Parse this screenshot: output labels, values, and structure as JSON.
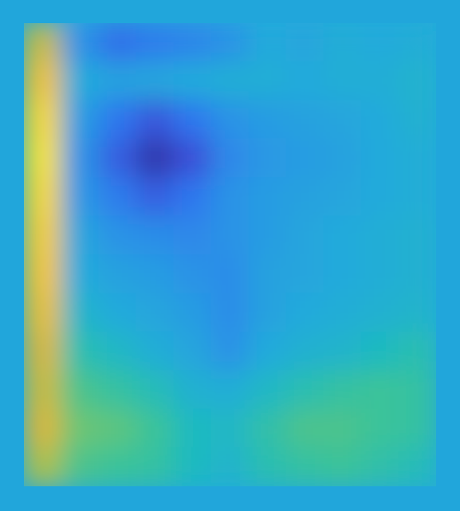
{
  "page": {
    "background_color": "#21a6db"
  },
  "chart_data": {
    "type": "heatmap",
    "title": "",
    "xlabel": "",
    "ylabel": "",
    "colormap": "parula",
    "colormap_stops": [
      "#2f2b8f",
      "#3a4fd8",
      "#2f77ee",
      "#2b93e6",
      "#24aadb",
      "#1fbac0",
      "#3bc39a",
      "#8dc55a",
      "#d7b83a",
      "#f4c62d",
      "#f7e930"
    ],
    "value_range": [
      0,
      1
    ],
    "grid": false,
    "legend": "none",
    "rows": 12,
    "cols": 11,
    "values": [
      [
        0.78,
        0.3,
        0.18,
        0.22,
        0.25,
        0.3,
        0.4,
        0.38,
        0.42,
        0.4,
        0.42
      ],
      [
        0.88,
        0.4,
        0.36,
        0.38,
        0.4,
        0.42,
        0.42,
        0.4,
        0.42,
        0.42,
        0.45
      ],
      [
        0.95,
        0.34,
        0.2,
        0.12,
        0.2,
        0.3,
        0.34,
        0.36,
        0.38,
        0.4,
        0.44
      ],
      [
        0.98,
        0.3,
        0.14,
        0.04,
        0.1,
        0.26,
        0.32,
        0.34,
        0.36,
        0.4,
        0.42
      ],
      [
        0.95,
        0.32,
        0.22,
        0.14,
        0.2,
        0.3,
        0.34,
        0.36,
        0.38,
        0.4,
        0.42
      ],
      [
        0.92,
        0.38,
        0.3,
        0.28,
        0.26,
        0.3,
        0.34,
        0.38,
        0.4,
        0.42,
        0.44
      ],
      [
        0.9,
        0.4,
        0.36,
        0.34,
        0.3,
        0.28,
        0.36,
        0.38,
        0.4,
        0.42,
        0.44
      ],
      [
        0.86,
        0.46,
        0.4,
        0.38,
        0.34,
        0.28,
        0.36,
        0.4,
        0.42,
        0.44,
        0.46
      ],
      [
        0.8,
        0.54,
        0.48,
        0.42,
        0.38,
        0.3,
        0.4,
        0.44,
        0.46,
        0.5,
        0.54
      ],
      [
        0.78,
        0.62,
        0.58,
        0.52,
        0.44,
        0.42,
        0.48,
        0.54,
        0.58,
        0.6,
        0.58
      ],
      [
        0.8,
        0.66,
        0.64,
        0.6,
        0.5,
        0.48,
        0.56,
        0.62,
        0.62,
        0.6,
        0.58
      ],
      [
        0.74,
        0.62,
        0.6,
        0.58,
        0.5,
        0.46,
        0.54,
        0.58,
        0.6,
        0.56,
        0.52
      ]
    ]
  }
}
